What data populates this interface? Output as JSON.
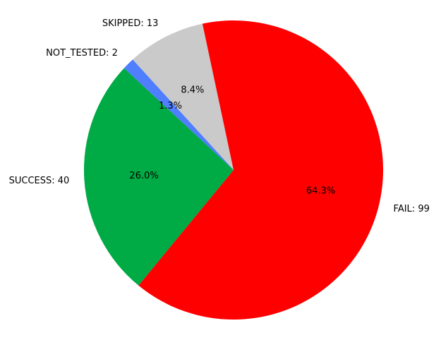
{
  "chart_data": {
    "type": "pie",
    "slices": [
      {
        "label": "SKIPPED: 13",
        "value": 13,
        "pct": "8.4%",
        "color": "#cacaca"
      },
      {
        "label": "NOT_TESTED: 2",
        "value": 2,
        "pct": "1.3%",
        "color": "#4f7eff"
      },
      {
        "label": "SUCCESS: 40",
        "value": 40,
        "pct": "26.0%",
        "color": "#00aa44"
      },
      {
        "label": "FAIL: 99",
        "value": 99,
        "pct": "64.3%",
        "color": "#ff0000"
      }
    ]
  }
}
